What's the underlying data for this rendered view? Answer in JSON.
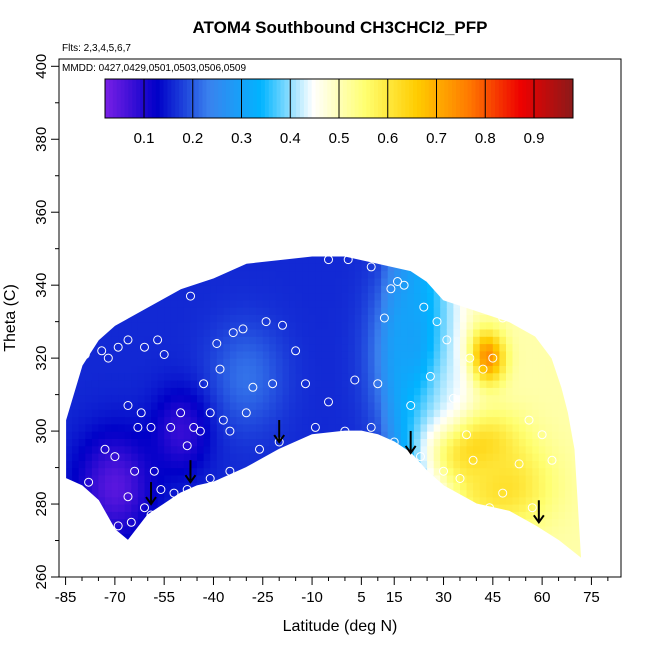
{
  "chart_data": {
    "type": "heatmap",
    "title": "ATOM4 Southbound CH3CHCl2_PFP",
    "subtitle_flights": "Flts: 2,3,4,5,6,7",
    "subtitle_dates": "MMDD: 0427,0429,0501,0503,0506,0509",
    "xlabel": "Latitude (deg N)",
    "ylabel": "Theta (C)",
    "xlim": [
      -87,
      84
    ],
    "ylim": [
      260,
      402
    ],
    "x_ticks": [
      -85,
      -70,
      -55,
      -40,
      -25,
      -10,
      5,
      15,
      30,
      45,
      60,
      75
    ],
    "y_ticks": [
      260,
      280,
      300,
      320,
      340,
      360,
      380,
      400
    ],
    "colorbar": {
      "range": [
        0.02,
        0.98
      ],
      "ticks": [
        0.1,
        0.2,
        0.3,
        0.4,
        0.5,
        0.6,
        0.7,
        0.8,
        0.9
      ],
      "colors": [
        "#7a1fe6",
        "#0000c8",
        "#3a82ee",
        "#00b4ff",
        "#ffffff",
        "#ffff70",
        "#ffcc00",
        "#ff7a00",
        "#ee0000",
        "#8b1a1a"
      ]
    },
    "region": {
      "top_boundary": [
        [
          -85,
          303
        ],
        [
          -80,
          318
        ],
        [
          -75,
          325
        ],
        [
          -70,
          329
        ],
        [
          -60,
          334
        ],
        [
          -50,
          339
        ],
        [
          -40,
          342
        ],
        [
          -30,
          346
        ],
        [
          -20,
          347
        ],
        [
          -10,
          348
        ],
        [
          0,
          348
        ],
        [
          10,
          346
        ],
        [
          20,
          344
        ],
        [
          25,
          341
        ],
        [
          30,
          336
        ],
        [
          40,
          333
        ],
        [
          50,
          330
        ],
        [
          58,
          326
        ],
        [
          63,
          320
        ],
        [
          66,
          312
        ],
        [
          68,
          305
        ],
        [
          70,
          295
        ],
        [
          71,
          280
        ],
        [
          72,
          265
        ]
      ],
      "bottom_boundary": [
        [
          -85,
          287
        ],
        [
          -80,
          285
        ],
        [
          -75,
          281
        ],
        [
          -70,
          273
        ],
        [
          -66,
          270
        ],
        [
          -60,
          277
        ],
        [
          -55,
          280
        ],
        [
          -50,
          283
        ],
        [
          -45,
          285
        ],
        [
          -40,
          286
        ],
        [
          -30,
          290
        ],
        [
          -20,
          295
        ],
        [
          -10,
          299
        ],
        [
          0,
          300
        ],
        [
          5,
          300
        ],
        [
          10,
          299
        ],
        [
          15,
          297
        ],
        [
          20,
          294
        ],
        [
          25,
          289
        ],
        [
          30,
          285
        ],
        [
          40,
          280
        ],
        [
          50,
          278
        ],
        [
          58,
          274
        ],
        [
          65,
          270
        ],
        [
          72,
          265
        ]
      ]
    },
    "concentration_field": {
      "background": 0.16,
      "features": [
        {
          "lat": 42,
          "theta": 320,
          "value": 0.95,
          "sigma_lat": 4,
          "sigma_theta": 5
        },
        {
          "lat": 38,
          "theta": 296,
          "value": 0.72,
          "sigma_lat": 9,
          "sigma_theta": 7
        },
        {
          "lat": 48,
          "theta": 285,
          "value": 0.62,
          "sigma_lat": 10,
          "sigma_theta": 8
        },
        {
          "lat": 30,
          "theta": 315,
          "value": 0.45,
          "sigma_lat": 10,
          "sigma_theta": 14
        },
        {
          "lat": 20,
          "theta": 325,
          "value": 0.3,
          "sigma_lat": 7,
          "sigma_theta": 14
        },
        {
          "lat": -30,
          "theta": 315,
          "value": 0.22,
          "sigma_lat": 8,
          "sigma_theta": 10
        },
        {
          "lat": -70,
          "theta": 285,
          "value": 0.05,
          "sigma_lat": 8,
          "sigma_theta": 10
        },
        {
          "lat": -50,
          "theta": 300,
          "value": 0.08,
          "sigma_lat": 6,
          "sigma_theta": 8
        }
      ]
    },
    "samples": [
      [
        -79,
        321
      ],
      [
        -74,
        322
      ],
      [
        -69,
        323
      ],
      [
        -66,
        325
      ],
      [
        -61,
        323
      ],
      [
        -57,
        325
      ],
      [
        -55,
        321
      ],
      [
        -47,
        337
      ],
      [
        -39,
        324
      ],
      [
        -34,
        327
      ],
      [
        -31,
        328
      ],
      [
        -24,
        330
      ],
      [
        -19,
        329
      ],
      [
        -15,
        322
      ],
      [
        -5,
        347
      ],
      [
        1,
        347
      ],
      [
        8,
        345
      ],
      [
        -62,
        305
      ],
      [
        -66,
        307
      ],
      [
        -63,
        301
      ],
      [
        -59,
        301
      ],
      [
        -50,
        305
      ],
      [
        -46,
        301
      ],
      [
        -44,
        300
      ],
      [
        -41,
        305
      ],
      [
        -37,
        303
      ],
      [
        -43,
        313
      ],
      [
        -38,
        317
      ],
      [
        -28,
        312
      ],
      [
        -22,
        313
      ],
      [
        -9,
        301
      ],
      [
        0,
        300
      ],
      [
        8,
        301
      ],
      [
        15,
        297
      ],
      [
        -70,
        293
      ],
      [
        -64,
        289
      ],
      [
        -58,
        289
      ],
      [
        -66,
        282
      ],
      [
        -61,
        279
      ],
      [
        -56,
        284
      ],
      [
        -52,
        283
      ],
      [
        -48,
        284
      ],
      [
        -41,
        287
      ],
      [
        -35,
        289
      ],
      [
        -26,
        295
      ],
      [
        -20,
        297
      ],
      [
        -73,
        295
      ],
      [
        -78,
        286
      ],
      [
        -69,
        274
      ],
      [
        -65,
        275
      ],
      [
        -59,
        277
      ],
      [
        -30,
        305
      ],
      [
        -35,
        300
      ],
      [
        -53,
        301
      ],
      [
        -48,
        296
      ],
      [
        3,
        314
      ],
      [
        10,
        313
      ],
      [
        12,
        331
      ],
      [
        14,
        339
      ],
      [
        16,
        341
      ],
      [
        18,
        340
      ],
      [
        21,
        345
      ],
      [
        24,
        334
      ],
      [
        28,
        330
      ],
      [
        31,
        325
      ],
      [
        33,
        309
      ],
      [
        37,
        299
      ],
      [
        39,
        292
      ],
      [
        35,
        287
      ],
      [
        30,
        289
      ],
      [
        23,
        293
      ],
      [
        20,
        307
      ],
      [
        26,
        315
      ],
      [
        38,
        320
      ],
      [
        42,
        317
      ],
      [
        45,
        320
      ],
      [
        48,
        331
      ],
      [
        56,
        303
      ],
      [
        60,
        299
      ],
      [
        63,
        292
      ],
      [
        53,
        291
      ],
      [
        48,
        283
      ],
      [
        44,
        279
      ],
      [
        57,
        279
      ],
      [
        61,
        327
      ],
      [
        -12,
        313
      ],
      [
        -5,
        308
      ],
      [
        -72,
        320
      ]
    ],
    "arrows": [
      [
        -59,
        280
      ],
      [
        -47,
        286
      ],
      [
        -20,
        297
      ],
      [
        20,
        294
      ],
      [
        59,
        275
      ]
    ]
  }
}
